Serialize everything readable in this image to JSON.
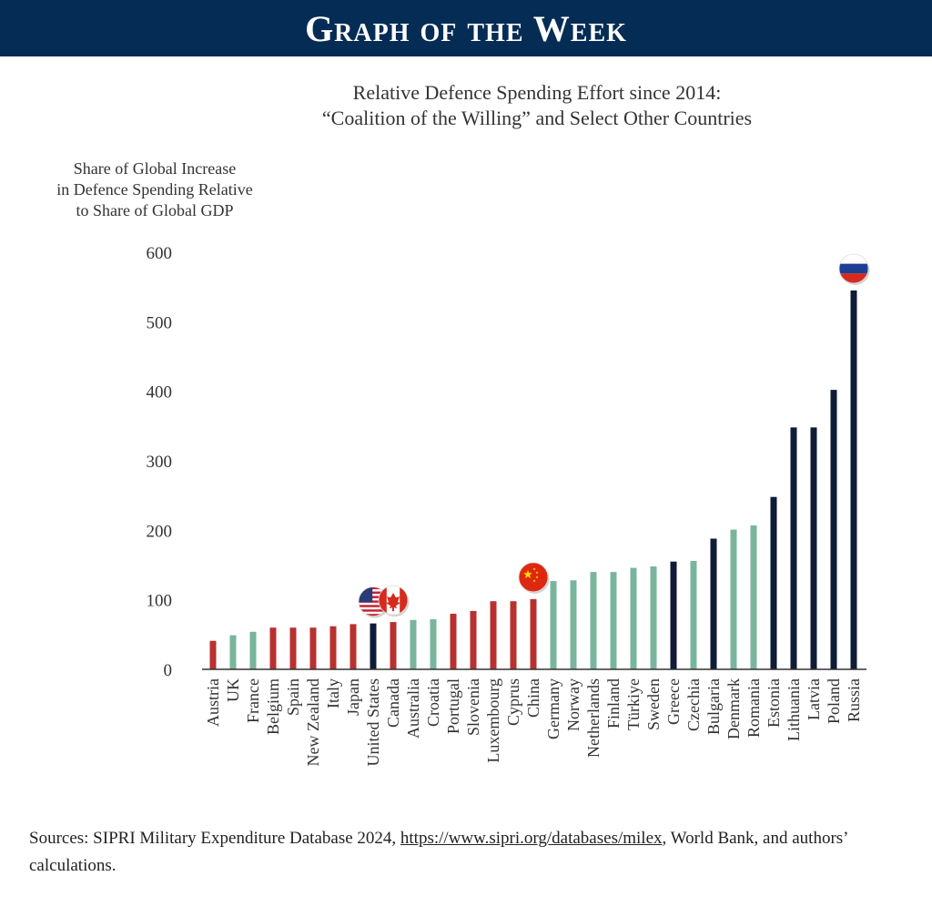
{
  "banner": {
    "title": "Graph of the Week"
  },
  "chart_data": {
    "type": "bar",
    "title_line1": "Relative Defence Spending Effort since 2014:",
    "title_line2": "“Coalition of the Willing” and Select Other Countries",
    "ylabel_lines": [
      "Share of Global Increase",
      "in Defence Spending Relative",
      "to Share of Global GDP"
    ],
    "xlabel": "",
    "ylim": [
      0,
      600
    ],
    "yticks": [
      0,
      100,
      200,
      300,
      400,
      500,
      600
    ],
    "categories": [
      "Austria",
      "UK",
      "France",
      "Belgium",
      "Spain",
      "New Zealand",
      "Italy",
      "Japan",
      "United States",
      "Canada",
      "Australia",
      "Croatia",
      "Portugal",
      "Slovenia",
      "Luxembourg",
      "Cyprus",
      "China",
      "Germany",
      "Norway",
      "Netherlands",
      "Finland",
      "Türkiye",
      "Sweden",
      "Greece",
      "Czechia",
      "Bulgaria",
      "Denmark",
      "Romania",
      "Estonia",
      "Lithuania",
      "Latvia",
      "Poland",
      "Russia"
    ],
    "values": [
      41,
      49,
      54,
      60,
      60,
      60,
      62,
      65,
      66,
      68,
      71,
      72,
      80,
      84,
      98,
      98,
      101,
      127,
      128,
      140,
      140,
      146,
      148,
      155,
      156,
      188,
      201,
      207,
      248,
      348,
      348,
      402,
      545
    ],
    "groups": [
      "red",
      "green",
      "green",
      "red",
      "red",
      "red",
      "red",
      "red",
      "navy",
      "red",
      "green",
      "green",
      "red",
      "red",
      "red",
      "red",
      "red",
      "green",
      "green",
      "green",
      "green",
      "green",
      "green",
      "navy",
      "green",
      "navy",
      "green",
      "green",
      "navy",
      "navy",
      "navy",
      "navy",
      "navy"
    ],
    "colors": {
      "red": "#b8312f",
      "green": "#79b59d",
      "navy": "#0e1c36"
    },
    "flags": [
      {
        "country": "United States",
        "name": "us-flag-icon"
      },
      {
        "country": "Canada",
        "name": "canada-flag-icon"
      },
      {
        "country": "China",
        "name": "china-flag-icon"
      },
      {
        "country": "Russia",
        "name": "russia-flag-icon"
      }
    ]
  },
  "sources": {
    "prefix": "Sources: SIPRI Military Expenditure Database 2024, ",
    "link": "https://www.sipri.org/databases/milex",
    "suffix": ", World Bank, and authors’ calculations."
  }
}
